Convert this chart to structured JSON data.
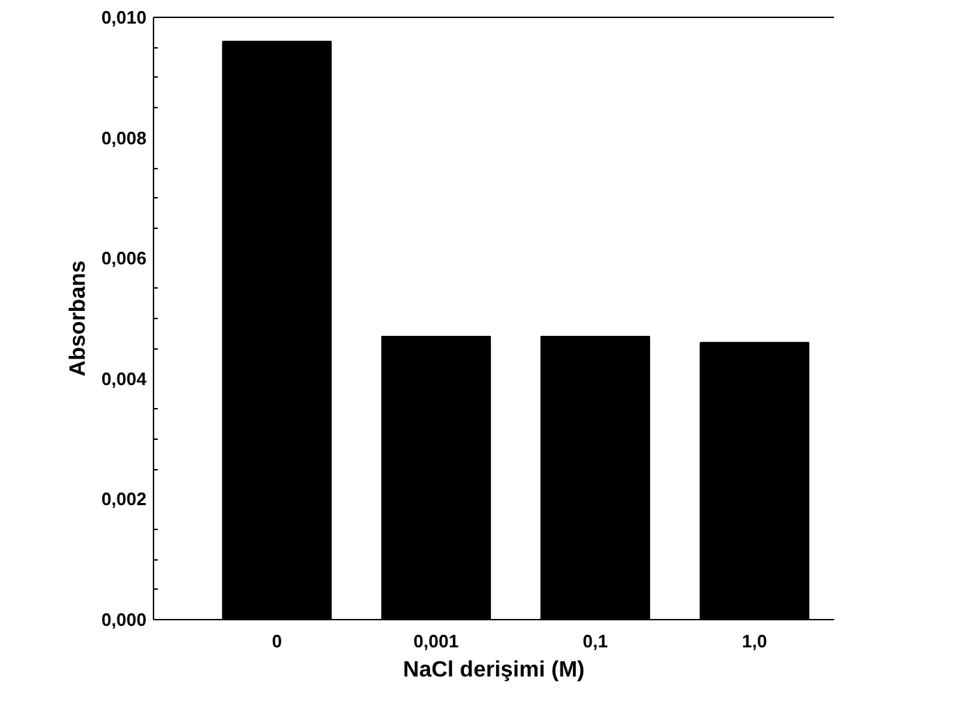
{
  "chart_data": {
    "type": "bar",
    "xlabel": "NaCl derişimi (M)",
    "ylabel": "Absorbans",
    "categories": [
      "0",
      "0,001",
      "0,1",
      "1,0"
    ],
    "values": [
      0.0096,
      0.0047,
      0.0047,
      0.0046
    ],
    "color": "#000000",
    "ylim": [
      0,
      0.01
    ],
    "yticks": [
      {
        "value": 0,
        "label": "0,000"
      },
      {
        "value": 0.0005,
        "label": null
      },
      {
        "value": 0.001,
        "label": null
      },
      {
        "value": 0.0015,
        "label": null
      },
      {
        "value": 0.002,
        "label": "0,002"
      },
      {
        "value": 0.0025,
        "label": null
      },
      {
        "value": 0.003,
        "label": null
      },
      {
        "value": 0.0035,
        "label": null
      },
      {
        "value": 0.004,
        "label": "0,004"
      },
      {
        "value": 0.0045,
        "label": null
      },
      {
        "value": 0.005,
        "label": null
      },
      {
        "value": 0.0055,
        "label": null
      },
      {
        "value": 0.006,
        "label": "0,006"
      },
      {
        "value": 0.0065,
        "label": null
      },
      {
        "value": 0.007,
        "label": null
      },
      {
        "value": 0.0075,
        "label": null
      },
      {
        "value": 0.008,
        "label": "0,008"
      },
      {
        "value": 0.0085,
        "label": null
      },
      {
        "value": 0.009,
        "label": null
      },
      {
        "value": 0.0095,
        "label": null
      },
      {
        "value": 0.01,
        "label": "0,010"
      }
    ],
    "grid": false
  }
}
